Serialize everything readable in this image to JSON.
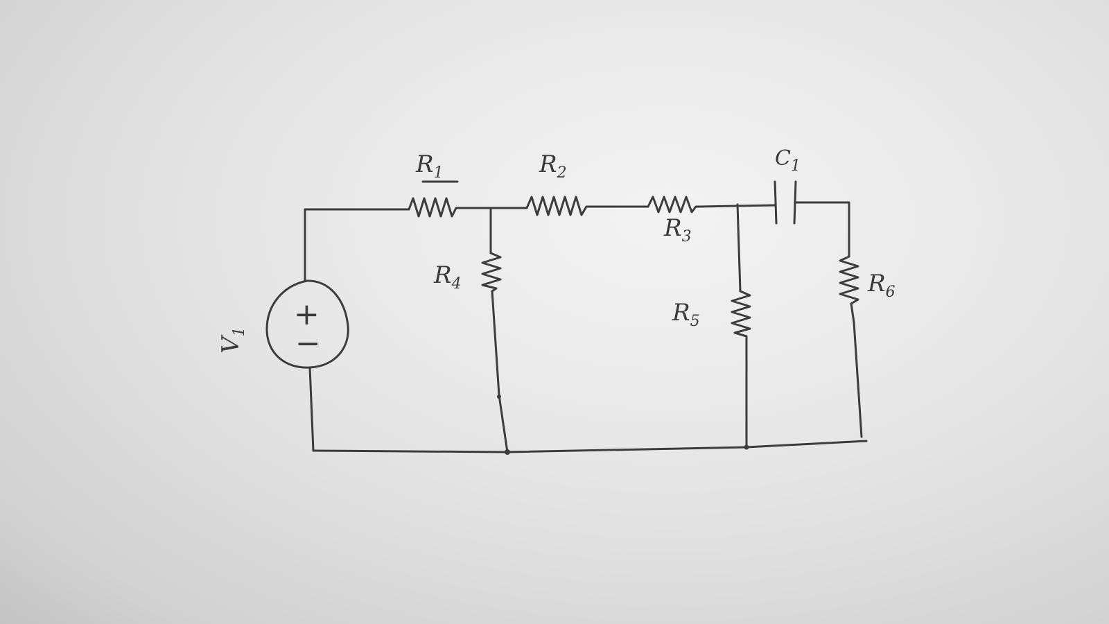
{
  "diagram": {
    "components": {
      "source": {
        "name": "V",
        "sub": "1",
        "plus": "+",
        "minus": "−"
      },
      "r1": {
        "name": "R",
        "sub": "1"
      },
      "r2": {
        "name": "R",
        "sub": "2"
      },
      "r3": {
        "name": "R",
        "sub": "3"
      },
      "r4": {
        "name": "R",
        "sub": "4"
      },
      "r5": {
        "name": "R",
        "sub": "5"
      },
      "r6": {
        "name": "R",
        "sub": "6"
      },
      "c1": {
        "name": "C",
        "sub": "1"
      }
    },
    "ink_color": "#3c3c3c",
    "paper_color": "#e8e8e8"
  }
}
